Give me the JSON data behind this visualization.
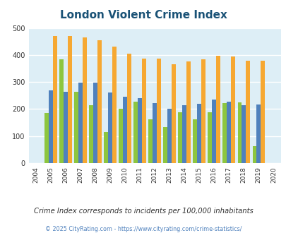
{
  "title": "London Violent Crime Index",
  "years": [
    2004,
    2005,
    2006,
    2007,
    2008,
    2009,
    2010,
    2011,
    2012,
    2013,
    2014,
    2015,
    2016,
    2017,
    2018,
    2019,
    2020
  ],
  "london": [
    null,
    185,
    385,
    265,
    215,
    115,
    200,
    228,
    162,
    133,
    187,
    162,
    187,
    223,
    225,
    63,
    null
  ],
  "kentucky": [
    null,
    268,
    265,
    299,
    299,
    260,
    245,
    240,
    223,
    202,
    215,
    220,
    235,
    228,
    213,
    217,
    null
  ],
  "national": [
    null,
    469,
    471,
    466,
    455,
    432,
    405,
    387,
    387,
    367,
    377,
    383,
    398,
    394,
    379,
    379,
    null
  ],
  "london_color": "#8dc63f",
  "kentucky_color": "#4f81bd",
  "national_color": "#f6a832",
  "bg_color": "#ddeef6",
  "title_color": "#1a5276",
  "subtitle": "Crime Index corresponds to incidents per 100,000 inhabitants",
  "footer": "© 2025 CityRating.com - https://www.cityrating.com/crime-statistics/",
  "ylim": [
    0,
    500
  ],
  "yticks": [
    0,
    100,
    200,
    300,
    400,
    500
  ],
  "grid_color": "#ffffff",
  "bar_width": 0.28
}
